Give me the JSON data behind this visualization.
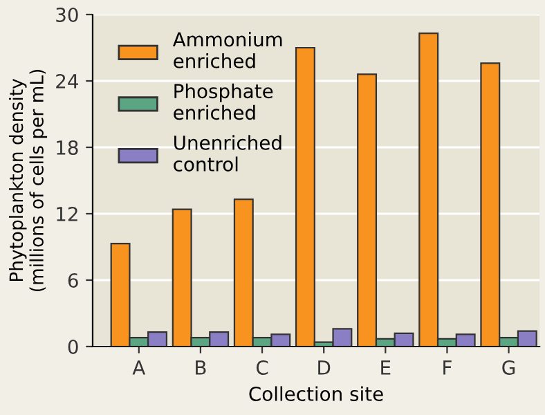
{
  "chart_data": {
    "type": "bar",
    "xlabel": "Collection site",
    "ylabel": "Phytoplankton density\n(millions of cells per mL)",
    "categories": [
      "A",
      "B",
      "C",
      "D",
      "E",
      "F",
      "G"
    ],
    "series": [
      {
        "name": "Ammonium\nenriched",
        "color": "#f7931e",
        "values": [
          9.3,
          12.4,
          13.3,
          27.0,
          24.6,
          28.3,
          25.6
        ]
      },
      {
        "name": "Phosphate\nenriched",
        "color": "#5ba582",
        "values": [
          0.8,
          0.8,
          0.8,
          0.4,
          0.7,
          0.7,
          0.8
        ]
      },
      {
        "name": "Unenriched\ncontrol",
        "color": "#8a7fc4",
        "values": [
          1.3,
          1.3,
          1.1,
          1.6,
          1.2,
          1.1,
          1.4
        ]
      }
    ],
    "ylim": [
      0,
      30
    ],
    "yticks": [
      0,
      6,
      12,
      18,
      24,
      30
    ],
    "grid": "y",
    "legend": "top left"
  }
}
